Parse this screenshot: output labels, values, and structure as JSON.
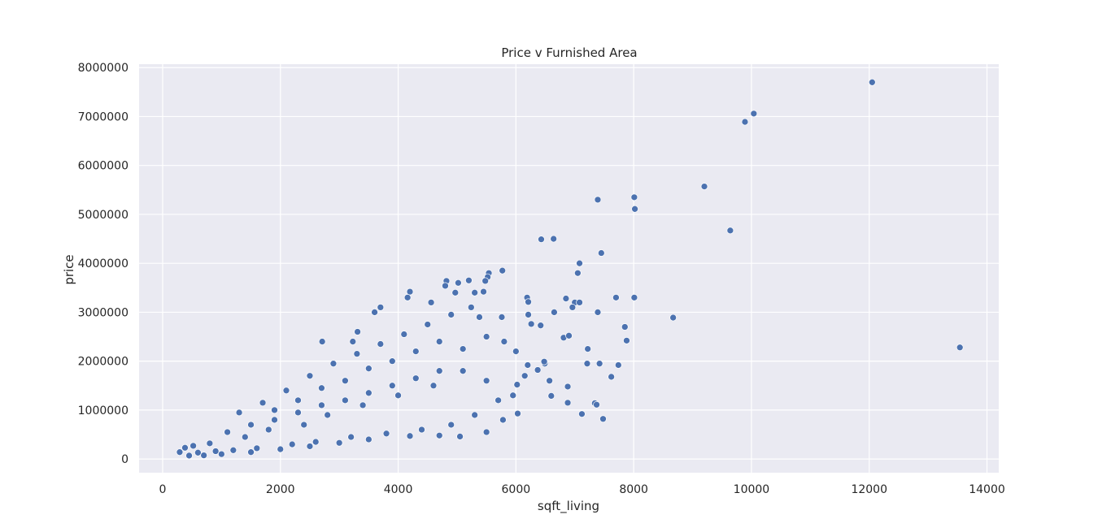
{
  "chart_data": {
    "type": "scatter",
    "title": "Price v Furnished Area",
    "xlabel": "sqft_living",
    "ylabel": "price",
    "xlim": [
      -400,
      14200
    ],
    "ylim": [
      -280000,
      8070000
    ],
    "xticks": [
      0,
      2000,
      4000,
      6000,
      8000,
      10000,
      12000,
      14000
    ],
    "yticks": [
      0,
      1000000,
      2000000,
      3000000,
      4000000,
      5000000,
      6000000,
      7000000,
      8000000
    ],
    "grid": true,
    "legend": "none",
    "colors": {
      "background": "#EAEAF2",
      "grid": "#FFFFFF",
      "point": "#4C72B0",
      "point_edge": "#FFFFFF"
    },
    "series": [
      {
        "points": [
          [
            12050,
            7700000
          ],
          [
            10040,
            7060000
          ],
          [
            9890,
            6890000
          ],
          [
            9200,
            5570000
          ],
          [
            9640,
            4670000
          ],
          [
            8010,
            5350000
          ],
          [
            8020,
            5110000
          ],
          [
            7390,
            5300000
          ],
          [
            7450,
            4210000
          ],
          [
            6430,
            4490000
          ],
          [
            6640,
            4500000
          ],
          [
            7080,
            4000000
          ],
          [
            7050,
            3800000
          ],
          [
            7000,
            3200000
          ],
          [
            7080,
            3200000
          ],
          [
            6960,
            3100000
          ],
          [
            8010,
            3300000
          ],
          [
            7700,
            3300000
          ],
          [
            7390,
            3000000
          ],
          [
            6650,
            3000000
          ],
          [
            6850,
            3280000
          ],
          [
            8670,
            2890000
          ],
          [
            7850,
            2700000
          ],
          [
            7880,
            2420000
          ],
          [
            6810,
            2480000
          ],
          [
            6900,
            2520000
          ],
          [
            7220,
            2250000
          ],
          [
            7210,
            1950000
          ],
          [
            7420,
            1950000
          ],
          [
            7740,
            1920000
          ],
          [
            7620,
            1680000
          ],
          [
            7340,
            1140000
          ],
          [
            7370,
            1110000
          ],
          [
            7120,
            920000
          ],
          [
            7480,
            820000
          ],
          [
            6880,
            1480000
          ],
          [
            6880,
            1150000
          ],
          [
            13540,
            2280000
          ],
          [
            6490,
            1950000
          ],
          [
            6570,
            1600000
          ],
          [
            6600,
            1290000
          ],
          [
            6480,
            1990000
          ],
          [
            6370,
            1820000
          ],
          [
            6260,
            2760000
          ],
          [
            6420,
            2730000
          ],
          [
            6210,
            2950000
          ],
          [
            6190,
            3300000
          ],
          [
            6210,
            3210000
          ],
          [
            6020,
            1520000
          ],
          [
            6030,
            930000
          ],
          [
            5770,
            3850000
          ],
          [
            5540,
            3800000
          ],
          [
            5520,
            3720000
          ],
          [
            5480,
            3640000
          ],
          [
            5200,
            3650000
          ],
          [
            5020,
            3600000
          ],
          [
            4820,
            3640000
          ],
          [
            4970,
            3400000
          ],
          [
            4800,
            3540000
          ],
          [
            5300,
            3400000
          ],
          [
            5450,
            3420000
          ],
          [
            4200,
            3420000
          ],
          [
            4160,
            3300000
          ],
          [
            4560,
            3200000
          ],
          [
            5240,
            3100000
          ],
          [
            3700,
            3100000
          ],
          [
            3600,
            3000000
          ],
          [
            3310,
            2600000
          ],
          [
            2710,
            2400000
          ],
          [
            3230,
            2400000
          ],
          [
            5760,
            2900000
          ],
          [
            5380,
            2900000
          ],
          [
            6000,
            2200000
          ],
          [
            5800,
            2400000
          ],
          [
            5500,
            2500000
          ],
          [
            6200,
            1920000
          ],
          [
            6150,
            1700000
          ],
          [
            5950,
            1300000
          ],
          [
            5700,
            1200000
          ],
          [
            5780,
            800000
          ],
          [
            5500,
            550000
          ],
          [
            5050,
            460000
          ],
          [
            4700,
            480000
          ],
          [
            4200,
            470000
          ],
          [
            3500,
            400000
          ],
          [
            3000,
            330000
          ],
          [
            2500,
            260000
          ],
          [
            2000,
            200000
          ],
          [
            1500,
            140000
          ],
          [
            1000,
            100000
          ],
          [
            700,
            75000
          ],
          [
            450,
            70000
          ],
          [
            290,
            140000
          ],
          [
            380,
            230000
          ],
          [
            520,
            270000
          ],
          [
            600,
            130000
          ],
          [
            800,
            320000
          ],
          [
            900,
            160000
          ],
          [
            1200,
            180000
          ],
          [
            1400,
            450000
          ],
          [
            1600,
            220000
          ],
          [
            1800,
            600000
          ],
          [
            2200,
            300000
          ],
          [
            2400,
            700000
          ],
          [
            2600,
            350000
          ],
          [
            2800,
            900000
          ],
          [
            3200,
            450000
          ],
          [
            3400,
            1100000
          ],
          [
            3800,
            520000
          ],
          [
            4000,
            1300000
          ],
          [
            4400,
            600000
          ],
          [
            4600,
            1500000
          ],
          [
            4900,
            700000
          ],
          [
            5100,
            1800000
          ],
          [
            5300,
            900000
          ],
          [
            1300,
            950000
          ],
          [
            1700,
            1150000
          ],
          [
            2100,
            1400000
          ],
          [
            2500,
            1700000
          ],
          [
            2900,
            1950000
          ],
          [
            3300,
            2150000
          ],
          [
            3700,
            2350000
          ],
          [
            4100,
            2550000
          ],
          [
            4500,
            2750000
          ],
          [
            4900,
            2950000
          ],
          [
            1900,
            1000000
          ],
          [
            2300,
            1200000
          ],
          [
            2700,
            1450000
          ],
          [
            3100,
            1600000
          ],
          [
            3500,
            1850000
          ],
          [
            3900,
            2000000
          ],
          [
            4300,
            2200000
          ],
          [
            4700,
            2400000
          ],
          [
            5100,
            2250000
          ],
          [
            5500,
            1600000
          ],
          [
            1100,
            550000
          ],
          [
            1500,
            700000
          ],
          [
            1900,
            800000
          ],
          [
            2300,
            950000
          ],
          [
            2700,
            1100000
          ],
          [
            3100,
            1200000
          ],
          [
            3500,
            1350000
          ],
          [
            3900,
            1500000
          ],
          [
            4300,
            1650000
          ],
          [
            4700,
            1800000
          ]
        ]
      }
    ]
  }
}
